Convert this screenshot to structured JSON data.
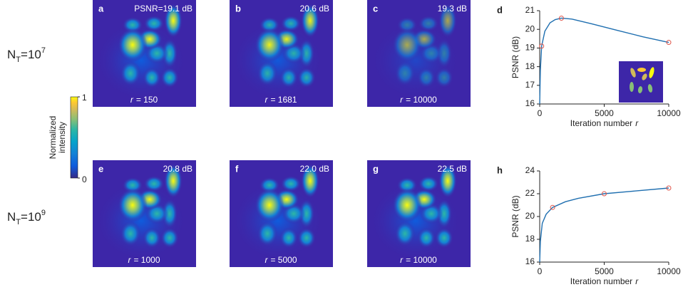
{
  "rows": [
    {
      "base": "N",
      "sub": "T",
      "eq": "=10",
      "sup": "7"
    },
    {
      "base": "N",
      "sub": "T",
      "eq": "=10",
      "sup": "9"
    }
  ],
  "colorbar": {
    "label": [
      "Normalized",
      "intensity"
    ],
    "ticks": [
      0,
      1
    ],
    "lim": [
      0,
      1
    ]
  },
  "images": [
    {
      "letter": "a",
      "psnr": "PSNR=19.1 dB",
      "r_symbol": "r",
      "r_text": "= 150"
    },
    {
      "letter": "b",
      "psnr": "20.6 dB",
      "r_symbol": "r",
      "r_text": "= 1681"
    },
    {
      "letter": "c",
      "psnr": "19.3 dB",
      "r_symbol": "r",
      "r_text": "= 10000"
    },
    {
      "letter": "e",
      "psnr": "20.8 dB",
      "r_symbol": "r",
      "r_text": "= 1000"
    },
    {
      "letter": "f",
      "psnr": "22.0 dB",
      "r_symbol": "r",
      "r_text": "= 5000"
    },
    {
      "letter": "g",
      "psnr": "22.5 dB",
      "r_symbol": "r",
      "r_text": "= 10000"
    }
  ],
  "chart_data": [
    {
      "type": "line",
      "letter": "d",
      "ylabel": "PSNR (dB)",
      "xlabel": "Iteration number",
      "xlabel_symbol": "r",
      "x": [
        0,
        50,
        150,
        400,
        800,
        1200,
        1681,
        2500,
        4000,
        6000,
        8000,
        10000
      ],
      "values": [
        16,
        17.8,
        19.1,
        19.9,
        20.35,
        20.52,
        20.6,
        20.55,
        20.3,
        19.95,
        19.6,
        19.3
      ],
      "color": "#1f6fb0",
      "markers": {
        "x": [
          150,
          1681,
          10000
        ],
        "values": [
          19.1,
          20.6,
          19.3
        ],
        "color": "#e0554a"
      },
      "xlim": [
        0,
        10000
      ],
      "ylim": [
        16,
        21
      ],
      "xticks": [
        0,
        5000,
        10000
      ],
      "yticks": [
        16,
        17,
        18,
        19,
        20,
        21
      ]
    },
    {
      "type": "line",
      "letter": "h",
      "ylabel": "PSNR (dB)",
      "xlabel": "Iteration number",
      "xlabel_symbol": "r",
      "x": [
        0,
        50,
        200,
        500,
        1000,
        2000,
        3000,
        5000,
        7000,
        10000
      ],
      "values": [
        16,
        17.8,
        19.4,
        20.2,
        20.8,
        21.3,
        21.6,
        22.0,
        22.2,
        22.5
      ],
      "color": "#1f6fb0",
      "markers": {
        "x": [
          1000,
          5000,
          10000
        ],
        "values": [
          20.8,
          22.0,
          22.5
        ],
        "color": "#e0554a"
      },
      "xlim": [
        0,
        10000
      ],
      "ylim": [
        16,
        24
      ],
      "xticks": [
        0,
        5000,
        10000
      ],
      "yticks": [
        16,
        18,
        20,
        22,
        24
      ]
    }
  ]
}
